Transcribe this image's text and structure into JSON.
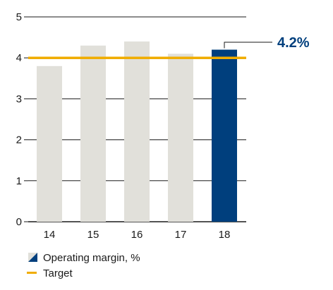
{
  "chart_data": {
    "type": "bar",
    "title": "",
    "xlabel": "",
    "ylabel": "",
    "categories": [
      "14",
      "15",
      "16",
      "17",
      "18"
    ],
    "series": [
      {
        "name": "Operating margin, %",
        "values": [
          3.8,
          4.3,
          4.4,
          4.1,
          4.2
        ]
      }
    ],
    "target": {
      "name": "Target",
      "value": 4.0
    },
    "highlight": {
      "category": "18",
      "label": "4.2%"
    },
    "ylim": [
      0,
      5
    ],
    "yticks": [
      0,
      1,
      2,
      3,
      4,
      5
    ],
    "grid": true,
    "legend_position": "bottom-left",
    "colors": {
      "bar": "#e1e0da",
      "bar_highlight": "#003f7d",
      "target": "#f0ad00",
      "axis": "#1a1a1a",
      "callout_text": "#003f7d"
    }
  }
}
